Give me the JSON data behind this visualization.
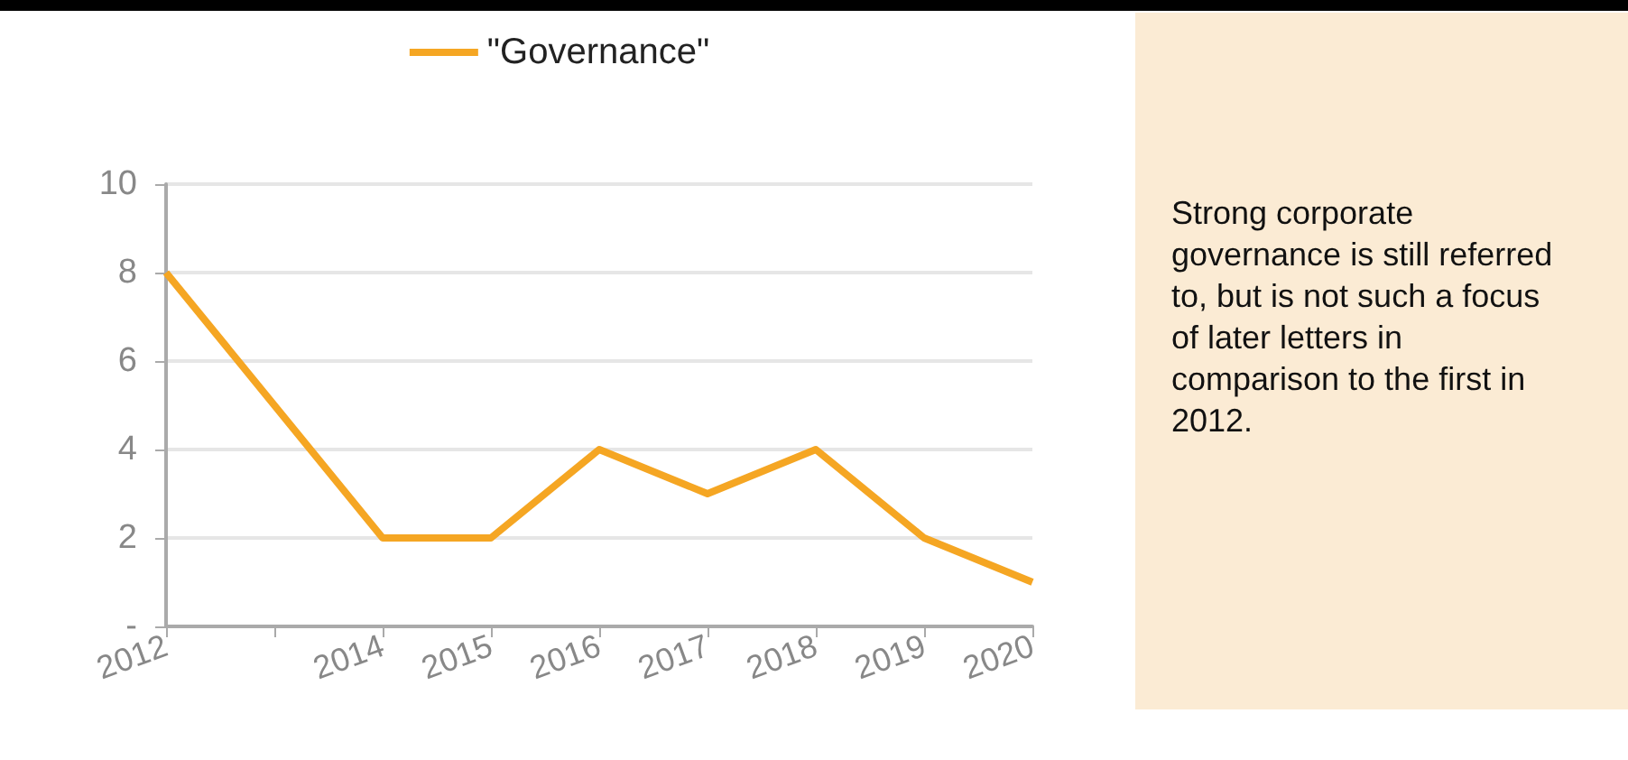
{
  "chart_data": {
    "type": "line",
    "categories": [
      "2012",
      null,
      "2014",
      "2015",
      "2016",
      "2017",
      "2018",
      "2019",
      "2020"
    ],
    "series": [
      {
        "name": "\"Governance\"",
        "color": "#f5a623",
        "values": [
          8,
          5,
          2,
          2,
          4,
          3,
          4,
          2,
          1
        ]
      }
    ],
    "ylim": [
      0,
      10
    ],
    "yticks": [
      {
        "value": 0,
        "label": "-"
      },
      2,
      4,
      6,
      8,
      10
    ],
    "grid": "y",
    "legend": "top",
    "marker": "none",
    "line_style": "solid",
    "annotations": [
      "Strong corporate governance is still referred to, but is not such a focus of later letters in comparison to the first in 2012."
    ]
  }
}
